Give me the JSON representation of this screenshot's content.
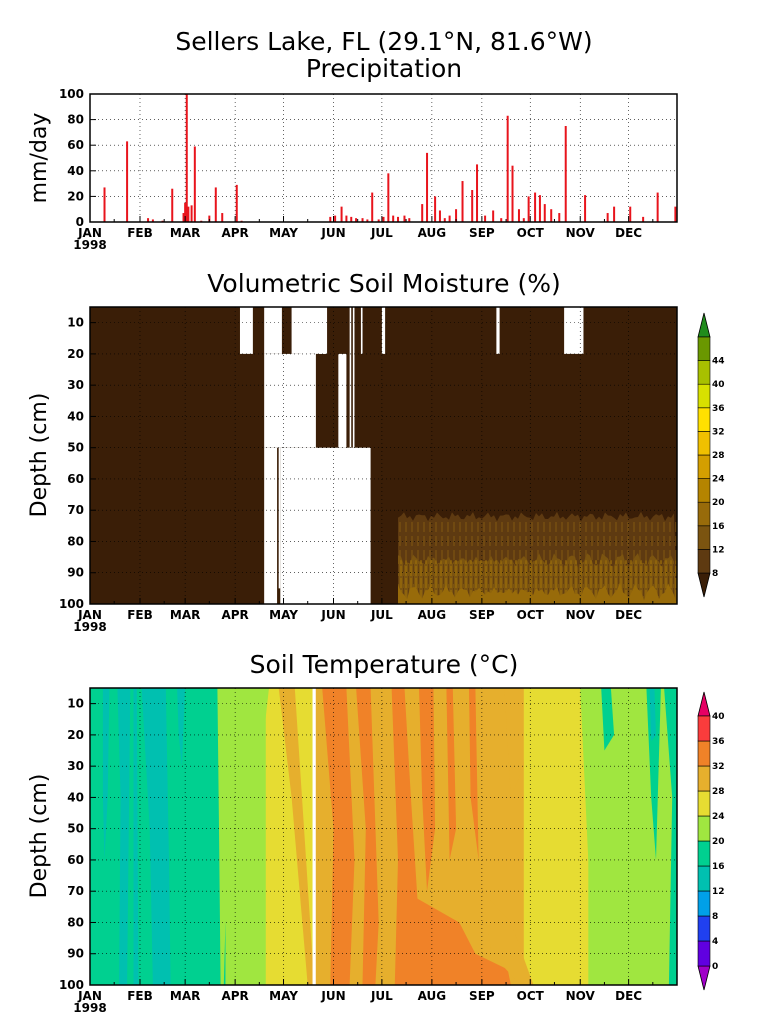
{
  "figure": {
    "title_line1": "Sellers Lake, FL (29.1°N, 81.6°W)",
    "year_label": "1998",
    "months": [
      "JAN",
      "FEB",
      "MAR",
      "APR",
      "MAY",
      "JUN",
      "JUL",
      "AUG",
      "SEP",
      "OCT",
      "NOV",
      "DEC"
    ]
  },
  "chart_data": [
    {
      "type": "bar",
      "title": "Precipitation",
      "ylabel": "mm/day",
      "xlabel": "",
      "xlim": [
        1,
        365
      ],
      "ylim": [
        0,
        100
      ],
      "yticks": [
        0,
        20,
        40,
        60,
        80,
        100
      ],
      "grid": true,
      "bar_color": "#e8141c",
      "x": [
        10,
        24,
        37,
        40,
        46,
        52,
        59,
        60,
        61,
        62,
        64,
        66,
        70,
        75,
        79,
        83,
        92,
        95,
        150,
        153,
        157,
        160,
        163,
        166,
        170,
        173,
        176,
        180,
        183,
        186,
        189,
        192,
        196,
        199,
        207,
        210,
        215,
        218,
        221,
        224,
        228,
        232,
        238,
        241,
        246,
        251,
        256,
        260,
        263,
        267,
        270,
        273,
        277,
        280,
        283,
        287,
        292,
        296,
        308,
        322,
        326,
        336,
        344,
        353,
        364
      ],
      "values": [
        27,
        63,
        3,
        2,
        1,
        26,
        7,
        15,
        100,
        12,
        13,
        59,
        1,
        5,
        27,
        7,
        29,
        1,
        4,
        5,
        12,
        5,
        4,
        3,
        3,
        2,
        23,
        2,
        4,
        38,
        5,
        4,
        5,
        3,
        14,
        54,
        20,
        9,
        3,
        5,
        10,
        32,
        25,
        45,
        5,
        9,
        3,
        83,
        44,
        10,
        3,
        20,
        23,
        21,
        14,
        10,
        7,
        75,
        21,
        7,
        12,
        12,
        4,
        23,
        12
      ]
    },
    {
      "type": "heatmap",
      "title": "Volumetric Soil Moisture (%)",
      "ylabel": "Depth (cm)",
      "xlabel": "",
      "xlim": [
        1,
        365
      ],
      "ylim": [
        100,
        5
      ],
      "yticks": [
        10,
        20,
        30,
        40,
        50,
        60,
        70,
        80,
        90,
        100
      ],
      "colorbar_ticks": [
        8,
        12,
        16,
        20,
        24,
        28,
        32,
        36,
        40,
        44
      ],
      "colorbar_colors": [
        "#3a1e07",
        "#5e3a11",
        "#7b5410",
        "#986b0a",
        "#b58400",
        "#d49f00",
        "#f0c000",
        "#ffe000",
        "#d8e000",
        "#a8c000",
        "#6a9800",
        "#208c1c"
      ],
      "background_class": "8-12",
      "missing_data": [
        {
          "days": [
            94,
            102
          ],
          "depth": [
            5,
            20
          ]
        },
        {
          "days": [
            109,
            120
          ],
          "depth": [
            5,
            20
          ]
        },
        {
          "days": [
            126,
            148
          ],
          "depth": [
            5,
            20
          ]
        },
        {
          "days": [
            132,
            137
          ],
          "depth": [
            5,
            50
          ]
        },
        {
          "days": [
            140,
            141
          ],
          "depth": [
            5,
            50
          ]
        },
        {
          "days": [
            164,
            165
          ],
          "depth": [
            5,
            50
          ]
        },
        {
          "days": [
            155,
            160
          ],
          "depth": [
            20,
            50
          ]
        },
        {
          "days": [
            143,
            147
          ],
          "depth": [
            5,
            20
          ]
        },
        {
          "days": [
            162,
            163
          ],
          "depth": [
            5,
            50
          ]
        },
        {
          "days": [
            169,
            170
          ],
          "depth": [
            5,
            20
          ]
        },
        {
          "days": [
            182,
            184
          ],
          "depth": [
            5,
            20
          ]
        },
        {
          "days": [
            109,
            141
          ],
          "depth": [
            20,
            50
          ]
        },
        {
          "days": [
            109,
            117
          ],
          "depth": [
            50,
            100
          ]
        },
        {
          "days": [
            118,
            119
          ],
          "depth": [
            50,
            95
          ]
        },
        {
          "days": [
            119,
            175
          ],
          "depth": [
            50,
            100
          ]
        },
        {
          "days": [
            253,
            255
          ],
          "depth": [
            5,
            20
          ]
        },
        {
          "days": [
            295,
            307
          ],
          "depth": [
            5,
            20
          ]
        }
      ],
      "wet_regions": [
        {
          "days": [
            192,
            365
          ],
          "depth": [
            72,
            100
          ],
          "class": "12-16"
        },
        {
          "days": [
            192,
            365
          ],
          "depth": [
            86,
            100
          ],
          "class": "16-20"
        },
        {
          "days": [
            192,
            365
          ],
          "depth": [
            96,
            100
          ],
          "class": "20-24"
        }
      ]
    },
    {
      "type": "heatmap",
      "title": "Soil Temperature (°C)",
      "ylabel": "Depth (cm)",
      "xlabel": "",
      "xlim": [
        1,
        365
      ],
      "ylim": [
        100,
        5
      ],
      "yticks": [
        10,
        20,
        30,
        40,
        50,
        60,
        70,
        80,
        90,
        100
      ],
      "colorbar_ticks": [
        0,
        4,
        8,
        12,
        16,
        20,
        24,
        28,
        32,
        36,
        40
      ],
      "colorbar_colors": [
        "#a000c8",
        "#6000e0",
        "#2040f0",
        "#00a0e8",
        "#00c0b0",
        "#00d090",
        "#a0e640",
        "#e6dc32",
        "#e6af2d",
        "#f08228",
        "#fa3c3c",
        "#e60064"
      ],
      "missing_data": [
        {
          "days": [
            139,
            141
          ],
          "depth": [
            5,
            100
          ]
        }
      ],
      "seasonal_profile": [
        {
          "days": [
            1,
            40
          ],
          "class": "16-20"
        },
        {
          "days": [
            40,
            85
          ],
          "class": "16-20"
        },
        {
          "days": [
            85,
            110
          ],
          "class": "20-24"
        },
        {
          "days": [
            110,
            140
          ],
          "class": "24-28"
        },
        {
          "days": [
            140,
            190
          ],
          "class": "28-32"
        },
        {
          "days": [
            190,
            270
          ],
          "class": "28-32"
        },
        {
          "days": [
            270,
            310
          ],
          "class": "24-28"
        },
        {
          "days": [
            310,
            365
          ],
          "class": "20-24"
        }
      ]
    }
  ]
}
